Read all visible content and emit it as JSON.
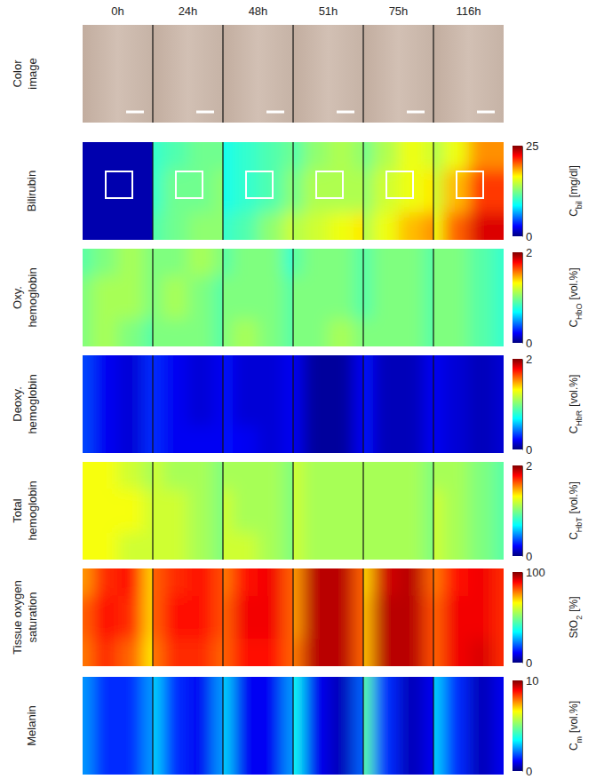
{
  "chart_data": {
    "type": "heatmap",
    "columns": [
      "0h",
      "24h",
      "48h",
      "51h",
      "75h",
      "116h"
    ],
    "rows": [
      {
        "type": "image",
        "label": [
          "Color",
          "image"
        ]
      },
      {
        "type": "heatmap",
        "label": [
          "Bilirubin"
        ],
        "colorbar": {
          "range": [
            0,
            25
          ],
          "ticks": [
            0,
            25
          ],
          "label": "C",
          "subscript": "bil",
          "unit": "[mg/dl]"
        },
        "cells": [
          [
            [
              1,
              1,
              1,
              1
            ],
            [
              1,
              1,
              1,
              1
            ],
            [
              1,
              1,
              1,
              1
            ]
          ],
          [
            [
              10,
              11,
              12,
              12
            ],
            [
              10,
              12,
              12,
              13
            ],
            [
              11,
              12,
              13,
              13
            ]
          ],
          [
            [
              9,
              10,
              11,
              12
            ],
            [
              9,
              10,
              11,
              13
            ],
            [
              10,
              11,
              13,
              15
            ]
          ],
          [
            [
              11,
              13,
              14,
              13
            ],
            [
              12,
              14,
              14,
              14
            ],
            [
              14,
              15,
              16,
              17
            ]
          ],
          [
            [
              12,
              14,
              16,
              15
            ],
            [
              13,
              15,
              16,
              17
            ],
            [
              14,
              16,
              18,
              19
            ]
          ],
          [
            [
              14,
              16,
              19,
              19
            ],
            [
              15,
              18,
              21,
              21
            ],
            [
              16,
              20,
              23,
              23
            ]
          ]
        ]
      },
      {
        "type": "heatmap",
        "label": [
          "Oxy.",
          "hemoglobin"
        ],
        "colorbar": {
          "range": [
            0,
            2
          ],
          "ticks": [
            0,
            2
          ],
          "label": "C",
          "subscript": "HbO",
          "unit": "[vol.%]"
        },
        "cells": [
          [
            [
              0.9,
              1.0,
              1.1,
              1.0
            ],
            [
              1.0,
              1.1,
              1.1,
              1.0
            ],
            [
              1.0,
              1.1,
              1.0,
              0.9
            ]
          ],
          [
            [
              1.0,
              1.0,
              1.1,
              1.0
            ],
            [
              1.0,
              1.1,
              1.0,
              0.9
            ],
            [
              1.0,
              1.0,
              1.0,
              0.9
            ]
          ],
          [
            [
              0.9,
              1.0,
              1.0,
              0.8
            ],
            [
              1.0,
              1.0,
              1.0,
              0.9
            ],
            [
              1.0,
              1.1,
              1.0,
              0.9
            ]
          ],
          [
            [
              0.9,
              1.0,
              1.0,
              0.9
            ],
            [
              1.0,
              1.0,
              1.0,
              0.9
            ],
            [
              1.0,
              1.0,
              1.1,
              1.0
            ]
          ],
          [
            [
              0.9,
              1.0,
              1.0,
              0.9
            ],
            [
              0.9,
              1.0,
              1.0,
              0.9
            ],
            [
              1.0,
              1.0,
              1.0,
              0.9
            ]
          ],
          [
            [
              1.0,
              1.0,
              0.9,
              0.8
            ],
            [
              1.0,
              1.0,
              0.9,
              0.8
            ],
            [
              1.0,
              1.0,
              0.9,
              0.8
            ]
          ]
        ]
      },
      {
        "type": "heatmap",
        "label": [
          "Deoxy.",
          "hemoglobin"
        ],
        "colorbar": {
          "range": [
            0,
            2
          ],
          "ticks": [
            0,
            2
          ],
          "label": "C",
          "subscript": "HbR",
          "unit": "[vol.%]"
        },
        "cells": [
          [
            [
              0.35,
              0.2,
              0.15,
              0.3
            ],
            [
              0.35,
              0.2,
              0.15,
              0.3
            ],
            [
              0.35,
              0.2,
              0.15,
              0.3
            ]
          ],
          [
            [
              0.3,
              0.2,
              0.15,
              0.2
            ],
            [
              0.3,
              0.2,
              0.15,
              0.2
            ],
            [
              0.3,
              0.2,
              0.2,
              0.2
            ]
          ],
          [
            [
              0.25,
              0.15,
              0.15,
              0.2
            ],
            [
              0.25,
              0.15,
              0.15,
              0.2
            ],
            [
              0.25,
              0.2,
              0.15,
              0.2
            ]
          ],
          [
            [
              0.2,
              0.05,
              0.05,
              0.2
            ],
            [
              0.2,
              0.05,
              0.05,
              0.2
            ],
            [
              0.2,
              0.05,
              0.05,
              0.2
            ]
          ],
          [
            [
              0.25,
              0.1,
              0.1,
              0.2
            ],
            [
              0.25,
              0.1,
              0.1,
              0.2
            ],
            [
              0.25,
              0.1,
              0.1,
              0.2
            ]
          ],
          [
            [
              0.2,
              0.15,
              0.1,
              0.15
            ],
            [
              0.2,
              0.15,
              0.1,
              0.15
            ],
            [
              0.2,
              0.15,
              0.1,
              0.15
            ]
          ]
        ]
      },
      {
        "type": "heatmap",
        "label": [
          "Total",
          "hemoglobin"
        ],
        "colorbar": {
          "range": [
            0,
            2
          ],
          "ticks": [
            0,
            2
          ],
          "label": "C",
          "subscript": "HbT",
          "unit": "[vol.%]"
        },
        "cells": [
          [
            [
              1.3,
              1.3,
              1.2,
              1.1
            ],
            [
              1.3,
              1.3,
              1.3,
              1.2
            ],
            [
              1.3,
              1.3,
              1.2,
              1.2
            ]
          ],
          [
            [
              1.2,
              1.1,
              1.1,
              1.0
            ],
            [
              1.2,
              1.2,
              1.1,
              1.0
            ],
            [
              1.2,
              1.2,
              1.1,
              1.0
            ]
          ],
          [
            [
              1.1,
              1.1,
              1.1,
              1.0
            ],
            [
              1.2,
              1.1,
              1.1,
              1.0
            ],
            [
              1.2,
              1.2,
              1.1,
              1.0
            ]
          ],
          [
            [
              1.2,
              1.1,
              1.1,
              1.1
            ],
            [
              1.2,
              1.1,
              1.1,
              1.1
            ],
            [
              1.2,
              1.1,
              1.1,
              1.1
            ]
          ],
          [
            [
              1.1,
              1.1,
              1.1,
              1.0
            ],
            [
              1.1,
              1.1,
              1.1,
              1.0
            ],
            [
              1.1,
              1.1,
              1.1,
              1.0
            ]
          ],
          [
            [
              1.1,
              1.1,
              1.0,
              0.9
            ],
            [
              1.2,
              1.1,
              1.0,
              0.9
            ],
            [
              1.2,
              1.1,
              1.0,
              0.9
            ]
          ]
        ]
      },
      {
        "type": "heatmap",
        "label": [
          "Tissue oxygen",
          "saturation"
        ],
        "colorbar": {
          "range": [
            0,
            100
          ],
          "ticks": [
            0,
            100
          ],
          "label": "StO",
          "subscript": "2",
          "unit": "[%]"
        },
        "cells": [
          [
            [
              75,
              85,
              88,
              70
            ],
            [
              80,
              88,
              85,
              70
            ],
            [
              78,
              85,
              80,
              68
            ]
          ],
          [
            [
              80,
              85,
              88,
              82
            ],
            [
              80,
              88,
              88,
              82
            ],
            [
              78,
              85,
              85,
              80
            ]
          ],
          [
            [
              78,
              88,
              90,
              80
            ],
            [
              80,
              90,
              90,
              80
            ],
            [
              80,
              88,
              88,
              80
            ]
          ],
          [
            [
              75,
              95,
              95,
              80
            ],
            [
              75,
              95,
              95,
              80
            ],
            [
              78,
              95,
              95,
              80
            ]
          ],
          [
            [
              70,
              93,
              95,
              80
            ],
            [
              72,
              95,
              95,
              82
            ],
            [
              72,
              95,
              95,
              82
            ]
          ],
          [
            [
              78,
              88,
              90,
              85
            ],
            [
              80,
              90,
              90,
              85
            ],
            [
              80,
              90,
              92,
              85
            ]
          ]
        ]
      },
      {
        "type": "heatmap",
        "label": [
          "Melanin"
        ],
        "colorbar": {
          "range": [
            0,
            10
          ],
          "ticks": [
            0,
            10
          ],
          "label": "C",
          "subscript": "m",
          "unit": "[vol.%]"
        },
        "cells": [
          [
            [
              2.5,
              1.5,
              1.5,
              2.5
            ],
            [
              2.5,
              1.5,
              1.5,
              2.5
            ],
            [
              2.5,
              1.5,
              1.5,
              2.5
            ]
          ],
          [
            [
              3,
              1.5,
              1,
              2.5
            ],
            [
              3,
              1.5,
              1,
              2.5
            ],
            [
              3,
              1.5,
              1,
              2.5
            ]
          ],
          [
            [
              3,
              1,
              1,
              2.5
            ],
            [
              3,
              1,
              1,
              2.5
            ],
            [
              3,
              1,
              1,
              2.5
            ]
          ],
          [
            [
              3.5,
              1,
              0.5,
              2
            ],
            [
              3.5,
              1,
              0.5,
              2
            ],
            [
              3.5,
              1,
              0.5,
              2
            ]
          ],
          [
            [
              4.5,
              1.5,
              0.5,
              1
            ],
            [
              4.5,
              1.5,
              0.5,
              1
            ],
            [
              4.5,
              1.5,
              0.5,
              1
            ]
          ],
          [
            [
              3,
              1.5,
              0.5,
              1
            ],
            [
              3,
              1.5,
              0.5,
              1
            ],
            [
              3,
              1.5,
              0.5,
              1
            ]
          ]
        ]
      }
    ]
  }
}
